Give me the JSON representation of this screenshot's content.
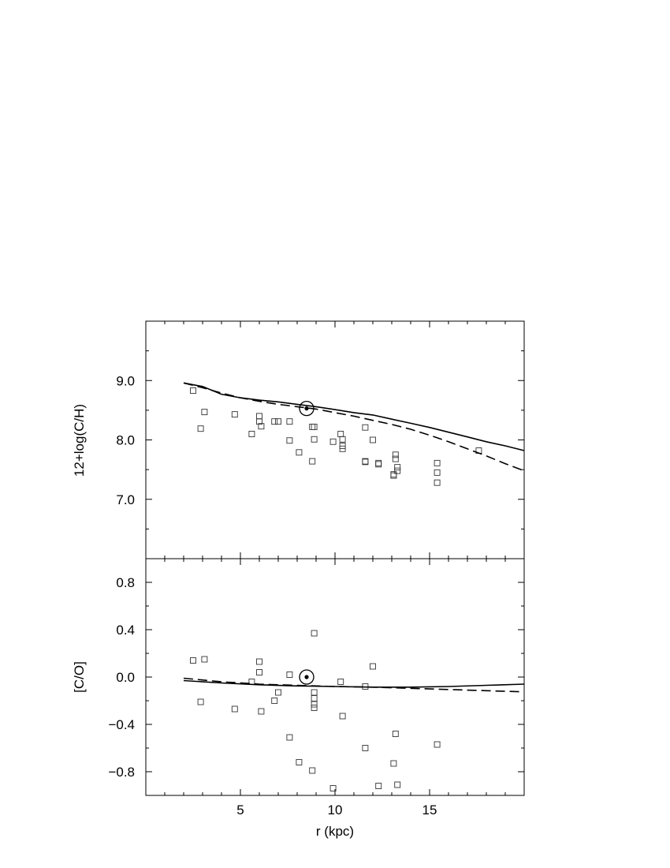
{
  "chart_data": [
    {
      "type": "scatter",
      "ylabel": "12+log(C/H)",
      "xlabel": "",
      "xlim": [
        0,
        20
      ],
      "ylim": [
        6.0,
        10.0
      ],
      "x_ticks": [
        5,
        10,
        15
      ],
      "y_ticks": [
        7.0,
        8.0,
        9.0
      ],
      "y_tick_labels": [
        "7.0",
        "8.0",
        "9.0"
      ],
      "grid": false,
      "sun_marker": {
        "x": 8.5,
        "y": 8.53
      },
      "series": [
        {
          "style": "open-square",
          "points": [
            [
              2.5,
              8.83
            ],
            [
              3.1,
              8.47
            ],
            [
              2.9,
              8.19
            ],
            [
              4.7,
              8.43
            ],
            [
              6.0,
              8.4
            ],
            [
              6.0,
              8.31
            ],
            [
              6.1,
              8.23
            ],
            [
              7.6,
              8.31
            ],
            [
              6.8,
              8.31
            ],
            [
              7.0,
              8.31
            ],
            [
              5.6,
              8.1
            ],
            [
              7.6,
              7.99
            ],
            [
              8.1,
              7.79
            ],
            [
              8.8,
              8.22
            ],
            [
              8.9,
              8.22
            ],
            [
              8.9,
              8.01
            ],
            [
              8.8,
              7.64
            ],
            [
              9.9,
              7.97
            ],
            [
              10.3,
              8.1
            ],
            [
              10.4,
              8.01
            ],
            [
              10.4,
              7.9
            ],
            [
              10.4,
              7.85
            ],
            [
              11.6,
              8.21
            ],
            [
              12.0,
              8.0
            ],
            [
              11.6,
              7.64
            ],
            [
              11.6,
              7.63
            ],
            [
              12.3,
              7.61
            ],
            [
              12.3,
              7.59
            ],
            [
              13.2,
              7.75
            ],
            [
              13.2,
              7.68
            ],
            [
              13.3,
              7.54
            ],
            [
              13.3,
              7.48
            ],
            [
              13.1,
              7.42
            ],
            [
              13.1,
              7.4
            ],
            [
              15.4,
              7.61
            ],
            [
              15.4,
              7.45
            ],
            [
              15.4,
              7.28
            ],
            [
              17.6,
              7.82
            ]
          ]
        },
        {
          "style": "solid-line",
          "points": [
            [
              2.0,
              8.96
            ],
            [
              3.0,
              8.9
            ],
            [
              4.0,
              8.77
            ],
            [
              5.0,
              8.71
            ],
            [
              6.0,
              8.67
            ],
            [
              7.0,
              8.64
            ],
            [
              8.0,
              8.6
            ],
            [
              9.0,
              8.56
            ],
            [
              10.0,
              8.51
            ],
            [
              11.0,
              8.46
            ],
            [
              12.0,
              8.42
            ],
            [
              13.0,
              8.35
            ],
            [
              14.0,
              8.28
            ],
            [
              15.0,
              8.21
            ],
            [
              16.0,
              8.13
            ],
            [
              17.0,
              8.05
            ],
            [
              18.0,
              7.97
            ],
            [
              19.0,
              7.9
            ],
            [
              20.0,
              7.82
            ]
          ]
        },
        {
          "style": "dashed-line",
          "points": [
            [
              2.0,
              8.96
            ],
            [
              3.0,
              8.88
            ],
            [
              4.0,
              8.79
            ],
            [
              5.0,
              8.71
            ],
            [
              6.0,
              8.65
            ],
            [
              7.0,
              8.6
            ],
            [
              8.0,
              8.56
            ],
            [
              9.0,
              8.52
            ],
            [
              10.0,
              8.46
            ],
            [
              11.0,
              8.4
            ],
            [
              12.0,
              8.33
            ],
            [
              13.0,
              8.26
            ],
            [
              14.0,
              8.18
            ],
            [
              15.0,
              8.08
            ],
            [
              16.0,
              7.97
            ],
            [
              17.0,
              7.85
            ],
            [
              18.0,
              7.73
            ],
            [
              19.0,
              7.6
            ],
            [
              20.0,
              7.48
            ]
          ]
        }
      ]
    },
    {
      "type": "scatter",
      "ylabel": "[C/O]",
      "xlabel": "r (kpc)",
      "xlim": [
        0,
        20
      ],
      "ylim": [
        -1.0,
        1.0
      ],
      "x_ticks": [
        5,
        10,
        15
      ],
      "x_tick_labels": [
        "5",
        "10",
        "15"
      ],
      "y_ticks": [
        -0.8,
        -0.4,
        0.0,
        0.4,
        0.8
      ],
      "y_tick_labels": [
        "−0.8",
        "−0.4",
        "0.0",
        "0.4",
        "0.8"
      ],
      "grid": false,
      "sun_marker": {
        "x": 8.5,
        "y": 0.0
      },
      "series": [
        {
          "style": "open-square",
          "points": [
            [
              2.5,
              0.14
            ],
            [
              3.1,
              0.15
            ],
            [
              2.9,
              -0.21
            ],
            [
              4.7,
              -0.27
            ],
            [
              6.0,
              0.13
            ],
            [
              6.0,
              0.04
            ],
            [
              6.1,
              -0.29
            ],
            [
              5.6,
              -0.04
            ],
            [
              7.0,
              -0.13
            ],
            [
              6.8,
              -0.2
            ],
            [
              7.6,
              0.02
            ],
            [
              7.6,
              -0.51
            ],
            [
              8.1,
              -0.72
            ],
            [
              8.8,
              -0.79
            ],
            [
              8.9,
              0.37
            ],
            [
              8.9,
              -0.13
            ],
            [
              8.9,
              -0.18
            ],
            [
              8.9,
              -0.23
            ],
            [
              8.9,
              -0.26
            ],
            [
              9.9,
              -0.94
            ],
            [
              10.3,
              -0.04
            ],
            [
              10.4,
              -0.33
            ],
            [
              11.6,
              -0.08
            ],
            [
              11.6,
              -0.6
            ],
            [
              12.0,
              0.09
            ],
            [
              12.3,
              -0.92
            ],
            [
              13.1,
              -0.73
            ],
            [
              13.2,
              -0.48
            ],
            [
              13.3,
              -0.91
            ],
            [
              15.4,
              -0.57
            ]
          ]
        },
        {
          "style": "solid-line",
          "points": [
            [
              2.0,
              -0.03
            ],
            [
              4.0,
              -0.05
            ],
            [
              6.0,
              -0.065
            ],
            [
              8.0,
              -0.075
            ],
            [
              10.0,
              -0.08
            ],
            [
              12.0,
              -0.085
            ],
            [
              14.0,
              -0.085
            ],
            [
              16.0,
              -0.08
            ],
            [
              18.0,
              -0.07
            ],
            [
              20.0,
              -0.06
            ]
          ]
        },
        {
          "style": "dashed-line",
          "points": [
            [
              2.0,
              -0.01
            ],
            [
              4.0,
              -0.04
            ],
            [
              6.0,
              -0.06
            ],
            [
              8.0,
              -0.07
            ],
            [
              10.0,
              -0.08
            ],
            [
              12.0,
              -0.085
            ],
            [
              14.0,
              -0.095
            ],
            [
              16.0,
              -0.105
            ],
            [
              18.0,
              -0.115
            ],
            [
              20.0,
              -0.125
            ]
          ]
        }
      ]
    }
  ]
}
